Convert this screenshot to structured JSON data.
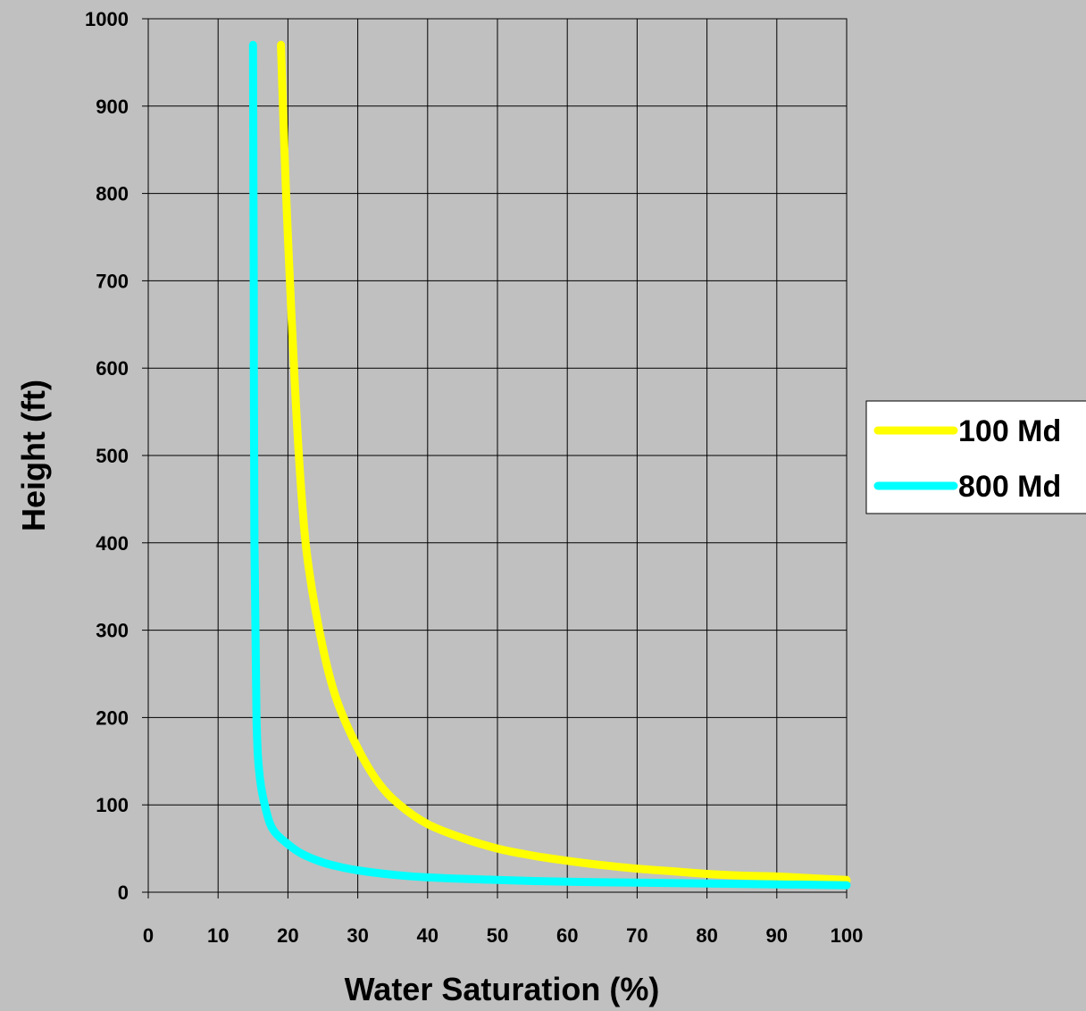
{
  "chart_data": {
    "type": "line",
    "title": "",
    "xlabel": "Water Saturation (%)",
    "ylabel": "Height (ft)",
    "xlim": [
      0,
      100
    ],
    "ylim": [
      0,
      1000
    ],
    "x_ticks": [
      "0",
      "10",
      "20",
      "30",
      "40",
      "50",
      "60",
      "70",
      "80",
      "90",
      "100"
    ],
    "y_ticks": [
      "0",
      "100",
      "200",
      "300",
      "400",
      "500",
      "600",
      "700",
      "800",
      "900",
      "1000"
    ],
    "grid": true,
    "legend_position": "right",
    "series": [
      {
        "name": "100 Md",
        "color": "#ffff00",
        "points": [
          [
            19,
            970
          ],
          [
            19.5,
            850
          ],
          [
            20,
            750
          ],
          [
            21,
            580
          ],
          [
            22,
            450
          ],
          [
            23,
            370
          ],
          [
            25,
            280
          ],
          [
            27,
            220
          ],
          [
            30,
            165
          ],
          [
            33,
            125
          ],
          [
            36,
            100
          ],
          [
            40,
            78
          ],
          [
            45,
            62
          ],
          [
            50,
            50
          ],
          [
            55,
            42
          ],
          [
            60,
            36
          ],
          [
            65,
            31
          ],
          [
            70,
            27
          ],
          [
            75,
            24
          ],
          [
            80,
            21
          ],
          [
            85,
            19
          ],
          [
            90,
            18
          ],
          [
            95,
            16
          ],
          [
            100,
            14
          ]
        ]
      },
      {
        "name": "800 Md",
        "color": "#00ffff",
        "points": [
          [
            15,
            970
          ],
          [
            15.1,
            700
          ],
          [
            15.2,
            400
          ],
          [
            15.5,
            200
          ],
          [
            16,
            130
          ],
          [
            17,
            90
          ],
          [
            18,
            70
          ],
          [
            20,
            55
          ],
          [
            22,
            44
          ],
          [
            25,
            34
          ],
          [
            28,
            28
          ],
          [
            30,
            25
          ],
          [
            35,
            20
          ],
          [
            40,
            17
          ],
          [
            50,
            14
          ],
          [
            60,
            12
          ],
          [
            70,
            11
          ],
          [
            80,
            10
          ],
          [
            90,
            9
          ],
          [
            100,
            8
          ]
        ]
      }
    ]
  }
}
